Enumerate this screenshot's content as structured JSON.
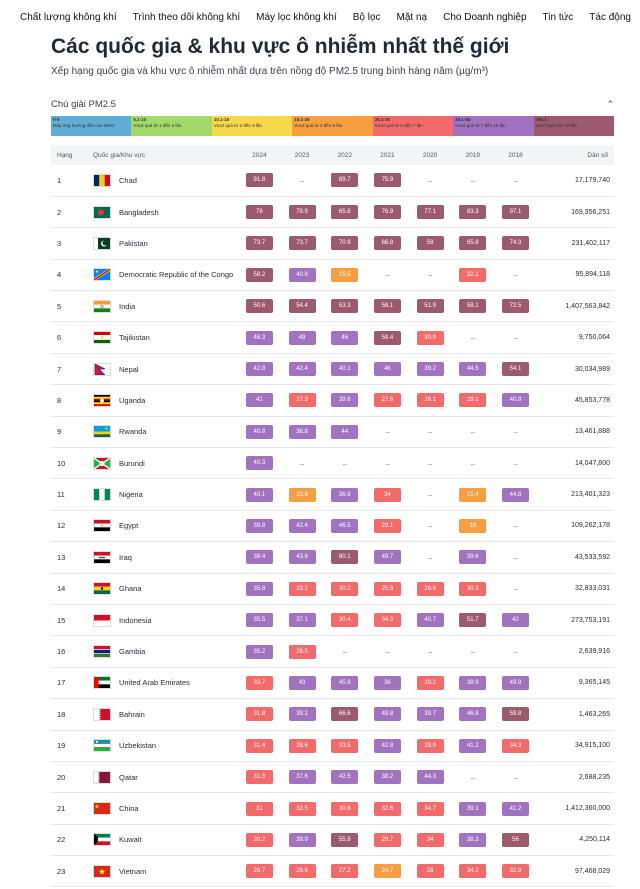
{
  "nav": [
    "Chất lượng không khí",
    "Trình theo dõi không khí",
    "Máy lọc không khí",
    "Bộ lọc",
    "Mặt nạ",
    "Cho Doanh nghiệp",
    "Tin tức",
    "Tác động"
  ],
  "page": {
    "title": "Các quốc gia & khu vực ô nhiễm nhất thế giới",
    "subtitle": "Xếp hạng quốc gia và khu vực ô nhiễm nhất dựa trên nồng độ PM2.5 trung bình hàng năm (µg/m³)"
  },
  "legend": {
    "title": "Chú giải PM2.5",
    "segments": [
      {
        "range": "0-5",
        "desc": "Đáp ứng hướng dẫn của WHO",
        "color": "#5eaed6"
      },
      {
        "range": "5.1-10",
        "desc": "Vượt quá từ 1 đến 2 lần",
        "color": "#a3d86b"
      },
      {
        "range": "10.1-15",
        "desc": "Vượt quá từ 2 đến 3 lần",
        "color": "#f5d94a"
      },
      {
        "range": "15.1-25",
        "desc": "Vượt quá từ 3 đến 5 lần",
        "color": "#f59e42"
      },
      {
        "range": "25.1-35",
        "desc": "Vượt quá từ 5 đến 7 lần",
        "color": "#f26a6a"
      },
      {
        "range": "35.1-50",
        "desc": "Vượt quá từ 7 đến 10 lần",
        "color": "#a072c0"
      },
      {
        "range": ">50.1",
        "desc": "Vượt quá trên 10 lần",
        "color": "#9c5a6e"
      }
    ]
  },
  "table": {
    "headers": [
      "Hạng",
      "Quốc gia/Khu vực",
      "2024",
      "2023",
      "2022",
      "2021",
      "2020",
      "2019",
      "2018",
      "Dân số"
    ],
    "rows": [
      {
        "rank": "1",
        "name": "Chad",
        "flag": "chad",
        "values": [
          "91.8",
          "--",
          "89.7",
          "75.9",
          "--",
          "--",
          "--"
        ],
        "pop": "17,179,740"
      },
      {
        "rank": "2",
        "name": "Bangladesh",
        "flag": "bangladesh",
        "values": [
          "78",
          "79.9",
          "65.8",
          "76.9",
          "77.1",
          "83.3",
          "97.1"
        ],
        "pop": "169,356,251"
      },
      {
        "rank": "3",
        "name": "Pakistan",
        "flag": "pakistan",
        "values": [
          "73.7",
          "73.7",
          "70.9",
          "66.8",
          "59",
          "65.8",
          "74.3"
        ],
        "pop": "231,402,117"
      },
      {
        "rank": "4",
        "name": "Democratic Republic of the Congo",
        "flag": "drc",
        "values": [
          "58.2",
          "40.8",
          "15.5",
          "--",
          "--",
          "32.1",
          "--"
        ],
        "pop": "95,894,118"
      },
      {
        "rank": "5",
        "name": "India",
        "flag": "india",
        "values": [
          "50.6",
          "54.4",
          "53.3",
          "58.1",
          "51.9",
          "58.1",
          "72.5"
        ],
        "pop": "1,407,563,842"
      },
      {
        "rank": "6",
        "name": "Tajikistan",
        "flag": "tajikistan",
        "values": [
          "46.3",
          "49",
          "46",
          "59.4",
          "30.9",
          "--",
          "--"
        ],
        "pop": "9,750,064"
      },
      {
        "rank": "7",
        "name": "Nepal",
        "flag": "nepal",
        "values": [
          "42.8",
          "42.4",
          "40.1",
          "46",
          "39.2",
          "44.5",
          "54.1"
        ],
        "pop": "30,034,989"
      },
      {
        "rank": "8",
        "name": "Uganda",
        "flag": "uganda",
        "values": [
          "41",
          "27.3",
          "39.6",
          "27.6",
          "26.1",
          "29.1",
          "40.8"
        ],
        "pop": "45,853,778"
      },
      {
        "rank": "9",
        "name": "Rwanda",
        "flag": "rwanda",
        "values": [
          "40.8",
          "36.8",
          "44",
          "--",
          "--",
          "--",
          "--"
        ],
        "pop": "13,461,888"
      },
      {
        "rank": "10",
        "name": "Burundi",
        "flag": "burundi",
        "values": [
          "40.3",
          "--",
          "--",
          "--",
          "--",
          "--",
          "--"
        ],
        "pop": "14,047,800"
      },
      {
        "rank": "11",
        "name": "Nigeria",
        "flag": "nigeria",
        "values": [
          "40.1",
          "23.9",
          "36.9",
          "34",
          "--",
          "21.4",
          "44.8"
        ],
        "pop": "213,401,323"
      },
      {
        "rank": "12",
        "name": "Egypt",
        "flag": "egypt",
        "values": [
          "39.8",
          "42.4",
          "46.5",
          "29.1",
          "--",
          "18",
          "--"
        ],
        "pop": "109,262,178"
      },
      {
        "rank": "13",
        "name": "Iraq",
        "flag": "iraq",
        "values": [
          "38.4",
          "43.8",
          "80.1",
          "49.7",
          "--",
          "39.6",
          "--"
        ],
        "pop": "43,533,592"
      },
      {
        "rank": "14",
        "name": "Ghana",
        "flag": "ghana",
        "values": [
          "35.8",
          "33.2",
          "30.2",
          "25.9",
          "26.9",
          "30.3",
          "--"
        ],
        "pop": "32,833,031"
      },
      {
        "rank": "15",
        "name": "Indonesia",
        "flag": "indonesia",
        "values": [
          "35.5",
          "37.1",
          "30.4",
          "34.3",
          "40.7",
          "51.7",
          "42"
        ],
        "pop": "273,753,191"
      },
      {
        "rank": "16",
        "name": "Gambia",
        "flag": "gambia",
        "values": [
          "35.2",
          "28.5",
          "--",
          "--",
          "--",
          "--",
          "--"
        ],
        "pop": "2,639,916"
      },
      {
        "rank": "17",
        "name": "United Arab Emirates",
        "flag": "uae",
        "values": [
          "33.7",
          "43",
          "45.9",
          "36",
          "29.2",
          "38.9",
          "49.9"
        ],
        "pop": "9,365,145"
      },
      {
        "rank": "18",
        "name": "Bahrain",
        "flag": "bahrain",
        "values": [
          "31.8",
          "39.2",
          "66.6",
          "49.8",
          "39.7",
          "46.8",
          "59.8"
        ],
        "pop": "1,463,265"
      },
      {
        "rank": "19",
        "name": "Uzbekistan",
        "flag": "uzbekistan",
        "values": [
          "31.4",
          "28.6",
          "33.5",
          "42.8",
          "29.9",
          "41.2",
          "34.3"
        ],
        "pop": "34,915,100"
      },
      {
        "rank": "20",
        "name": "Qatar",
        "flag": "qatar",
        "values": [
          "31.3",
          "37.6",
          "42.5",
          "38.2",
          "44.3",
          "--",
          "--"
        ],
        "pop": "2,688,235"
      },
      {
        "rank": "21",
        "name": "China",
        "flag": "china",
        "values": [
          "31",
          "32.5",
          "30.6",
          "32.6",
          "34.7",
          "39.1",
          "41.2"
        ],
        "pop": "1,412,360,000"
      },
      {
        "rank": "22",
        "name": "Kuwait",
        "flag": "kuwait",
        "values": [
          "30.2",
          "39.9",
          "55.8",
          "29.7",
          "34",
          "38.3",
          "56"
        ],
        "pop": "4,250,114"
      },
      {
        "rank": "23",
        "name": "Vietnam",
        "flag": "vietnam",
        "values": [
          "28.7",
          "29.6",
          "27.2",
          "24.7",
          "28",
          "34.1",
          "32.9"
        ],
        "pop": "97,468,029"
      }
    ]
  }
}
